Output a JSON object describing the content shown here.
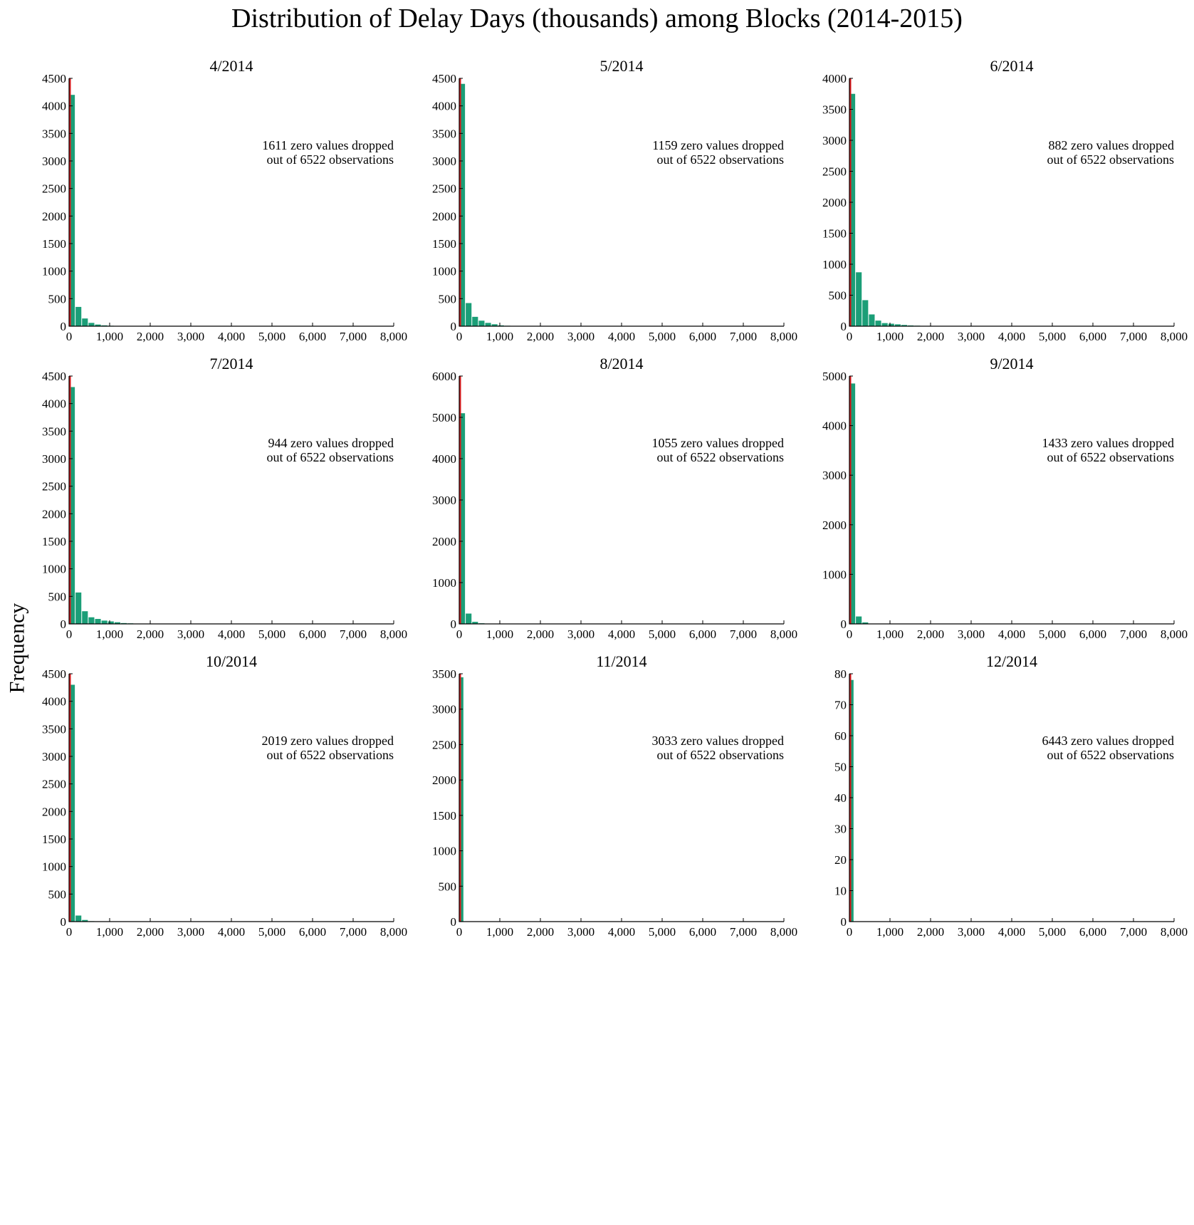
{
  "figure": {
    "title": "Distribution of Delay Days (thousands) among Blocks (2014-2015)",
    "ylabel": "Frequency"
  },
  "colors": {
    "bar": "#1b9e77",
    "marker": "#d7191c",
    "axis": "#000000"
  },
  "chart_data": [
    {
      "type": "bar",
      "title": "4/2014",
      "xlim": [
        0,
        8000
      ],
      "xticks": [
        0,
        1000,
        2000,
        3000,
        4000,
        5000,
        6000,
        7000,
        8000
      ],
      "ylim": [
        0,
        4500
      ],
      "yticks": [
        0,
        500,
        1000,
        1500,
        2000,
        2500,
        3000,
        3500,
        4000,
        4500
      ],
      "bin_width": 160,
      "values": [
        4200,
        350,
        140,
        60,
        30,
        15,
        8
      ],
      "marker_x": 0,
      "annotation": [
        "1611 zero values dropped",
        "out of 6522 observations"
      ]
    },
    {
      "type": "bar",
      "title": "5/2014",
      "xlim": [
        0,
        8000
      ],
      "xticks": [
        0,
        1000,
        2000,
        3000,
        4000,
        5000,
        6000,
        7000,
        8000
      ],
      "ylim": [
        0,
        4500
      ],
      "yticks": [
        0,
        500,
        1000,
        1500,
        2000,
        2500,
        3000,
        3500,
        4000,
        4500
      ],
      "bin_width": 160,
      "values": [
        4400,
        420,
        170,
        100,
        60,
        35,
        15,
        8
      ],
      "marker_x": 0,
      "annotation": [
        "1159 zero values dropped",
        "out of 6522 observations"
      ]
    },
    {
      "type": "bar",
      "title": "6/2014",
      "xlim": [
        0,
        8000
      ],
      "xticks": [
        0,
        1000,
        2000,
        3000,
        4000,
        5000,
        6000,
        7000,
        8000
      ],
      "ylim": [
        0,
        4000
      ],
      "yticks": [
        0,
        500,
        1000,
        1500,
        2000,
        2500,
        3000,
        3500,
        4000
      ],
      "bin_width": 160,
      "values": [
        3750,
        870,
        420,
        190,
        90,
        50,
        40,
        30,
        20,
        12,
        8,
        5
      ],
      "marker_x": 0,
      "annotation": [
        "882 zero values dropped",
        "out of 6522 observations"
      ]
    },
    {
      "type": "bar",
      "title": "7/2014",
      "xlim": [
        0,
        8000
      ],
      "xticks": [
        0,
        1000,
        2000,
        3000,
        4000,
        5000,
        6000,
        7000,
        8000
      ],
      "ylim": [
        0,
        4500
      ],
      "yticks": [
        0,
        500,
        1000,
        1500,
        2000,
        2500,
        3000,
        3500,
        4000,
        4500
      ],
      "bin_width": 160,
      "values": [
        4300,
        570,
        230,
        120,
        90,
        60,
        45,
        30,
        15,
        10
      ],
      "marker_x": 0,
      "annotation": [
        "944 zero values dropped",
        "out of 6522 observations"
      ]
    },
    {
      "type": "bar",
      "title": "8/2014",
      "xlim": [
        0,
        8000
      ],
      "xticks": [
        0,
        1000,
        2000,
        3000,
        4000,
        5000,
        6000,
        7000,
        8000
      ],
      "ylim": [
        0,
        6000
      ],
      "yticks": [
        0,
        1000,
        2000,
        3000,
        4000,
        5000,
        6000
      ],
      "bin_width": 160,
      "values": [
        5100,
        250,
        50,
        15
      ],
      "marker_x": 0,
      "annotation": [
        "1055 zero values dropped",
        "out of 6522 observations"
      ]
    },
    {
      "type": "bar",
      "title": "9/2014",
      "xlim": [
        0,
        8000
      ],
      "xticks": [
        0,
        1000,
        2000,
        3000,
        4000,
        5000,
        6000,
        7000,
        8000
      ],
      "ylim": [
        0,
        5000
      ],
      "yticks": [
        0,
        1000,
        2000,
        3000,
        4000,
        5000
      ],
      "bin_width": 160,
      "values": [
        4850,
        150,
        30
      ],
      "marker_x": 0,
      "annotation": [
        "1433 zero values dropped",
        "out of 6522 observations"
      ]
    },
    {
      "type": "bar",
      "title": "10/2014",
      "xlim": [
        0,
        8000
      ],
      "xticks": [
        0,
        1000,
        2000,
        3000,
        4000,
        5000,
        6000,
        7000,
        8000
      ],
      "ylim": [
        0,
        4500
      ],
      "yticks": [
        0,
        500,
        1000,
        1500,
        2000,
        2500,
        3000,
        3500,
        4000,
        4500
      ],
      "bin_width": 160,
      "values": [
        4300,
        110,
        30,
        8
      ],
      "marker_x": 0,
      "annotation": [
        "2019 zero values dropped",
        "out of 6522 observations"
      ]
    },
    {
      "type": "bar",
      "title": "11/2014",
      "xlim": [
        0,
        8000
      ],
      "xticks": [
        0,
        1000,
        2000,
        3000,
        4000,
        5000,
        6000,
        7000,
        8000
      ],
      "ylim": [
        0,
        3500
      ],
      "yticks": [
        0,
        500,
        1000,
        1500,
        2000,
        2500,
        3000,
        3500
      ],
      "bin_width": 120,
      "values": [
        3450
      ],
      "marker_x": 0,
      "annotation": [
        "3033 zero values dropped",
        "out of 6522 observations"
      ]
    },
    {
      "type": "bar",
      "title": "12/2014",
      "xlim": [
        0,
        8000
      ],
      "xticks": [
        0,
        1000,
        2000,
        3000,
        4000,
        5000,
        6000,
        7000,
        8000
      ],
      "ylim": [
        0,
        80
      ],
      "yticks": [
        0,
        10,
        20,
        30,
        40,
        50,
        60,
        70,
        80
      ],
      "bin_width": 120,
      "values": [
        78
      ],
      "marker_x": 0,
      "annotation": [
        "6443 zero values dropped",
        "out of 6522 observations"
      ]
    }
  ]
}
